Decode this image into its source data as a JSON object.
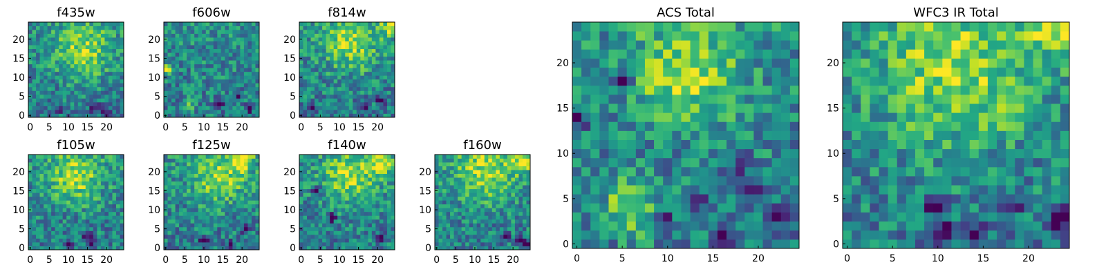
{
  "chart_data": [
    {
      "type": "heatmap",
      "title": "f435w",
      "grid_size": [
        25,
        25
      ],
      "xlim": [
        0,
        25
      ],
      "ylim": [
        0,
        25
      ],
      "x_ticks": [
        0,
        5,
        10,
        15,
        20
      ],
      "y_ticks": [
        0,
        5,
        10,
        15,
        20
      ],
      "peak": {
        "x": 14,
        "y": 17,
        "radius": 5
      },
      "secondary_peak": null,
      "dark_spots": [
        [
          8,
          2
        ],
        [
          17,
          2
        ],
        [
          20,
          1
        ]
      ],
      "colormap": "viridis",
      "grid": false
    },
    {
      "type": "heatmap",
      "title": "f606w",
      "grid_size": [
        25,
        25
      ],
      "xlim": [
        0,
        25
      ],
      "ylim": [
        0,
        25
      ],
      "x_ticks": [
        0,
        5,
        10,
        15,
        20
      ],
      "y_ticks": [
        0,
        5,
        10,
        15,
        20
      ],
      "peak": {
        "x": 6,
        "y": 3,
        "radius": 1
      },
      "secondary_peak": {
        "x": 0,
        "y": 12,
        "radius": 1
      },
      "dark_spots": [
        [
          14,
          3
        ],
        [
          19,
          5
        ],
        [
          22,
          2
        ]
      ],
      "colormap": "viridis",
      "grid": false
    },
    {
      "type": "heatmap",
      "title": "f814w",
      "grid_size": [
        25,
        25
      ],
      "xlim": [
        0,
        25
      ],
      "ylim": [
        0,
        25
      ],
      "x_ticks": [
        0,
        5,
        10,
        15,
        20
      ],
      "y_ticks": [
        0,
        5,
        10,
        15,
        20
      ],
      "peak": {
        "x": 13,
        "y": 19,
        "radius": 5
      },
      "secondary_peak": {
        "x": 24,
        "y": 24,
        "radius": 2
      },
      "dark_spots": [
        [
          3,
          2
        ],
        [
          17,
          3
        ],
        [
          21,
          4
        ]
      ],
      "colormap": "viridis",
      "grid": false
    },
    {
      "type": "heatmap",
      "title": "f105w",
      "grid_size": [
        25,
        25
      ],
      "xlim": [
        0,
        25
      ],
      "ylim": [
        0,
        25
      ],
      "x_ticks": [
        0,
        5,
        10,
        15,
        20
      ],
      "y_ticks": [
        0,
        5,
        10,
        15,
        20
      ],
      "peak": {
        "x": 12,
        "y": 19,
        "radius": 5
      },
      "secondary_peak": null,
      "dark_spots": [
        [
          15,
          3
        ],
        [
          16,
          1
        ],
        [
          10,
          1
        ]
      ],
      "colormap": "viridis",
      "grid": false
    },
    {
      "type": "heatmap",
      "title": "f125w",
      "grid_size": [
        25,
        25
      ],
      "xlim": [
        0,
        25
      ],
      "ylim": [
        0,
        25
      ],
      "x_ticks": [
        0,
        5,
        10,
        15,
        20
      ],
      "y_ticks": [
        0,
        5,
        10,
        15,
        20
      ],
      "peak": {
        "x": 14,
        "y": 19,
        "radius": 5
      },
      "secondary_peak": {
        "x": 20,
        "y": 23,
        "radius": 2
      },
      "dark_spots": [
        [
          10,
          2
        ],
        [
          17,
          1
        ],
        [
          21,
          5
        ]
      ],
      "colormap": "viridis",
      "grid": false
    },
    {
      "type": "heatmap",
      "title": "f140w",
      "grid_size": [
        25,
        25
      ],
      "xlim": [
        0,
        25
      ],
      "ylim": [
        0,
        25
      ],
      "x_ticks": [
        0,
        5,
        10,
        15,
        20
      ],
      "y_ticks": [
        0,
        5,
        10,
        15,
        20
      ],
      "peak": {
        "x": 13,
        "y": 19,
        "radius": 5
      },
      "secondary_peak": {
        "x": 21,
        "y": 22,
        "radius": 2
      },
      "dark_spots": [
        [
          4,
          15
        ],
        [
          8,
          8
        ],
        [
          21,
          3
        ]
      ],
      "colormap": "viridis",
      "grid": false
    },
    {
      "type": "heatmap",
      "title": "f160w",
      "grid_size": [
        25,
        25
      ],
      "xlim": [
        0,
        25
      ],
      "ylim": [
        0,
        25
      ],
      "x_ticks": [
        0,
        5,
        10,
        15,
        20
      ],
      "y_ticks": [
        0,
        5,
        10,
        15,
        20
      ],
      "peak": {
        "x": 13,
        "y": 20,
        "radius": 6
      },
      "secondary_peak": {
        "x": 23,
        "y": 23,
        "radius": 2
      },
      "dark_spots": [
        [
          22,
          2
        ],
        [
          18,
          3
        ],
        [
          24,
          1
        ]
      ],
      "colormap": "viridis",
      "grid": false
    },
    {
      "type": "heatmap",
      "title": "ACS Total",
      "grid_size": [
        25,
        25
      ],
      "xlim": [
        0,
        25
      ],
      "ylim": [
        0,
        25
      ],
      "x_ticks": [
        0,
        5,
        10,
        15,
        20
      ],
      "y_ticks": [
        0,
        5,
        10,
        15,
        20
      ],
      "peak": {
        "x": 12,
        "y": 19,
        "radius": 4
      },
      "secondary_peak": {
        "x": 6,
        "y": 4,
        "radius": 2
      },
      "dark_spots": [
        [
          5,
          18
        ],
        [
          18,
          9
        ],
        [
          16,
          1
        ],
        [
          20,
          6
        ],
        [
          13,
          5
        ],
        [
          9,
          3
        ],
        [
          23,
          3
        ],
        [
          0,
          14
        ]
      ],
      "colormap": "viridis",
      "grid": false
    },
    {
      "type": "heatmap",
      "title": "WFC3 IR Total",
      "grid_size": [
        25,
        25
      ],
      "xlim": [
        0,
        25
      ],
      "ylim": [
        0,
        25
      ],
      "x_ticks": [
        0,
        5,
        10,
        15,
        20
      ],
      "y_ticks": [
        0,
        5,
        10,
        15,
        20
      ],
      "peak": {
        "x": 12,
        "y": 19,
        "radius": 6
      },
      "secondary_peak": {
        "x": 23,
        "y": 24,
        "radius": 2
      },
      "dark_spots": [
        [
          11,
          1
        ],
        [
          14,
          1
        ],
        [
          10,
          4
        ],
        [
          18,
          4
        ],
        [
          23,
          2
        ],
        [
          24,
          3
        ]
      ],
      "colormap": "viridis",
      "grid": false
    }
  ]
}
